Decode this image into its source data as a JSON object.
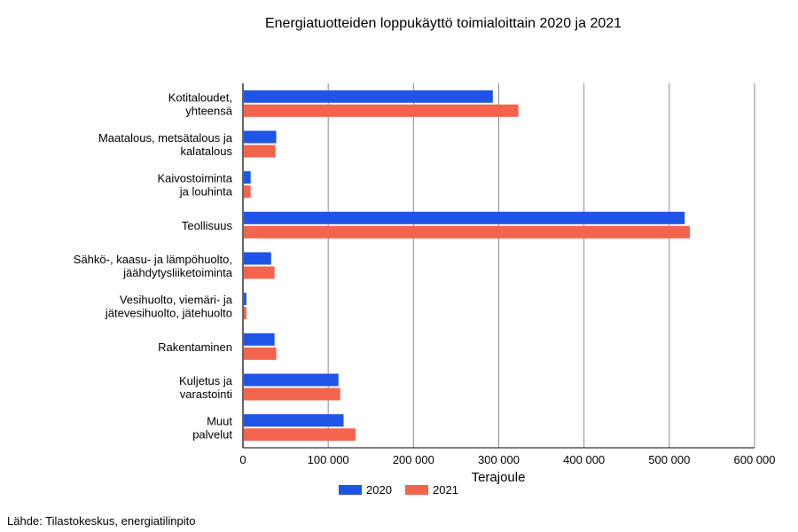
{
  "chart_data": {
    "type": "bar",
    "orientation": "horizontal",
    "title": "Energiatuotteiden loppukäyttö toimialoittain 2020 ja 2021",
    "xlabel": "Terajoule",
    "ylabel": "",
    "xlim": [
      0,
      600000
    ],
    "ticks": [
      "0",
      "100 000",
      "200 000",
      "300 000",
      "400 000",
      "500 000",
      "600 000"
    ],
    "tick_values": [
      0,
      100000,
      200000,
      300000,
      400000,
      500000,
      600000
    ],
    "grid": true,
    "legend_position": "bottom",
    "categories": [
      [
        "Kotitaloudet,",
        "yhteensä"
      ],
      [
        "Maatalous, metsätalous ja",
        "kalatalous"
      ],
      [
        "Kaivostoiminta",
        "ja louhinta"
      ],
      [
        "Teollisuus"
      ],
      [
        "Sähkö-, kaasu- ja lämpöhuolto,",
        "jäähdytysliiketoiminta"
      ],
      [
        "Vesihuolto, viemäri- ja",
        "jätevesihuolto, jätehuolto"
      ],
      [
        "Rakentaminen"
      ],
      [
        "Kuljetus ja",
        "varastointi"
      ],
      [
        "Muut",
        "palvelut"
      ]
    ],
    "series": [
      {
        "name": "2020",
        "color": "#1f55e6",
        "values": [
          292000,
          38000,
          8000,
          517000,
          32000,
          3000,
          36000,
          111000,
          117000
        ]
      },
      {
        "name": "2021",
        "color": "#f2644d",
        "values": [
          322000,
          37000,
          8000,
          523000,
          36000,
          3000,
          38000,
          113000,
          131000
        ]
      }
    ]
  },
  "source_text": "Lähde: Tilastokeskus, energiatilinpito"
}
